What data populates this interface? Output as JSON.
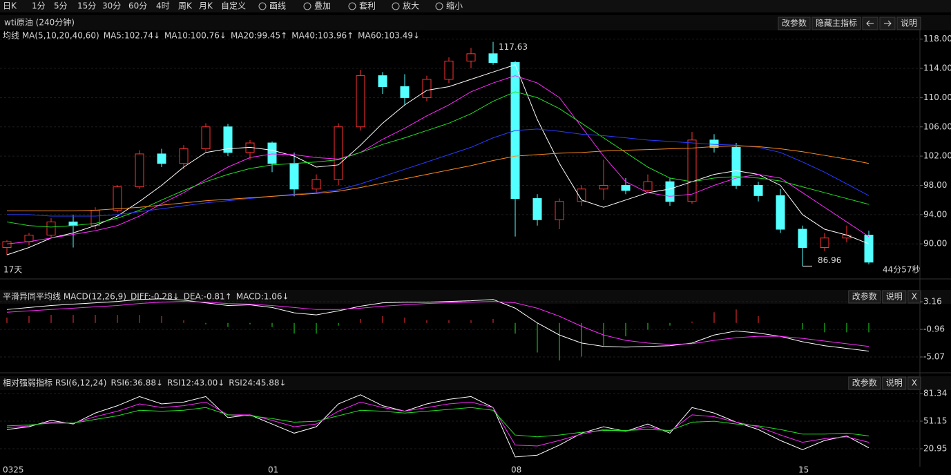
{
  "toolbar": [
    "日K",
    "1分",
    "5分",
    "15分",
    "30分",
    "60分",
    "4时",
    "周K",
    "月K",
    "自定义",
    "画线",
    "叠加",
    "套利",
    "放大",
    "缩小"
  ],
  "header": {
    "title": "wti原油 (240分钟)",
    "buttons": [
      "改参数",
      "隐藏主指标",
      "说明"
    ]
  },
  "chart_data": [
    {
      "type": "candlestick",
      "title": "均线 MA(5,10,20,40,60)",
      "up_color": "#ff3232",
      "down_color": "#54ffff",
      "open": [
        89.5,
        90.3,
        91.2,
        93.0,
        92.5,
        94.6,
        97.8,
        102.3,
        101.0,
        103.0,
        106.0,
        102.5,
        103.8,
        101.0,
        97.5,
        98.8,
        106.0,
        113.0,
        111.5,
        110.0,
        112.5,
        115.0,
        116.0,
        114.8,
        96.2,
        93.3,
        95.8,
        97.5,
        98.0,
        97.3,
        98.5,
        95.8,
        104.2,
        103.2,
        98.0,
        96.6,
        92.0,
        89.5,
        90.8,
        91.2
      ],
      "high": [
        90.5,
        91.5,
        93.5,
        94.0,
        95.0,
        98.0,
        102.8,
        103.0,
        103.5,
        106.5,
        106.4,
        104.2,
        104.0,
        102.5,
        99.5,
        106.5,
        113.8,
        113.5,
        113.2,
        113.0,
        115.5,
        116.8,
        117.63,
        115.0,
        96.8,
        96.2,
        98.0,
        101.5,
        99.0,
        99.5,
        99.0,
        105.3,
        105.0,
        103.8,
        98.5,
        97.5,
        92.5,
        91.5,
        92.5,
        91.8
      ],
      "low": [
        88.5,
        89.8,
        90.8,
        89.5,
        92.0,
        94.3,
        97.5,
        100.5,
        100.2,
        102.6,
        102.0,
        101.5,
        99.8,
        96.5,
        97.0,
        98.0,
        105.5,
        110.5,
        109.0,
        109.5,
        112.0,
        114.0,
        114.5,
        91.0,
        92.5,
        92.0,
        95.2,
        96.0,
        96.8,
        97.0,
        95.2,
        95.5,
        102.5,
        97.5,
        95.8,
        91.5,
        86.96,
        89.0,
        90.2,
        87.2
      ],
      "close": [
        90.3,
        91.2,
        93.0,
        92.5,
        94.6,
        97.8,
        102.3,
        101.0,
        103.0,
        106.0,
        102.5,
        103.8,
        101.0,
        97.5,
        98.8,
        106.0,
        113.0,
        111.5,
        110.0,
        112.5,
        115.0,
        116.0,
        114.8,
        96.2,
        93.3,
        95.8,
        97.5,
        98.0,
        97.3,
        98.5,
        95.8,
        104.2,
        103.2,
        98.0,
        96.6,
        92.0,
        89.5,
        90.8,
        91.2,
        87.5
      ],
      "series": [
        {
          "name": "MA5:102.74↓",
          "color": "#ffffff",
          "values": [
            88.5,
            89.5,
            90.8,
            91.5,
            92.5,
            93.8,
            95.8,
            98,
            100.5,
            102.5,
            103,
            103.2,
            102.8,
            102,
            100.5,
            100.8,
            103.5,
            106.5,
            109,
            111,
            111.5,
            112.5,
            113.5,
            114.5,
            107,
            101,
            96,
            95,
            96,
            97,
            97.5,
            98.5,
            99.5,
            100,
            99.5,
            98,
            94,
            92,
            91.2,
            90
          ]
        },
        {
          "name": "MA10:100.76↓",
          "color": "#ff2bff",
          "values": [
            90,
            90.3,
            90.8,
            91.3,
            91.8,
            92.5,
            93.8,
            95.5,
            97,
            98.8,
            100.5,
            101.8,
            102.3,
            102.2,
            101.8,
            101.6,
            102.5,
            104.3,
            105.8,
            107.5,
            109,
            110.8,
            112,
            113,
            112,
            110,
            106,
            102,
            98.5,
            97,
            96.5,
            96.8,
            98,
            99,
            99.5,
            99,
            97,
            95,
            93,
            91
          ]
        },
        {
          "name": "MA20:99.45↑",
          "color": "#22e022",
          "values": [
            93,
            92.5,
            92.3,
            92.5,
            92.8,
            93.5,
            94.6,
            96,
            97.3,
            98.5,
            99.5,
            100.3,
            100.8,
            101,
            101.2,
            101.5,
            102.5,
            103.6,
            104.5,
            105.5,
            106.5,
            107.8,
            109.5,
            110.8,
            110,
            108.5,
            106.5,
            104.5,
            102.5,
            100.5,
            99,
            98.5,
            99,
            99.2,
            99,
            98.6,
            97.8,
            97,
            96.2,
            95.4
          ]
        },
        {
          "name": "MA40:103.96↑",
          "color": "#2a3cff",
          "values": [
            94,
            94,
            93.8,
            93.8,
            93.8,
            94,
            94.4,
            94.8,
            95.2,
            95.6,
            95.9,
            96.2,
            96.5,
            96.8,
            97,
            97.4,
            98.2,
            99.2,
            100.2,
            101.2,
            102.2,
            103.2,
            104.5,
            105.5,
            105.7,
            105.4,
            105,
            104.8,
            104.5,
            104.2,
            104,
            103.8,
            103.6,
            103.5,
            103.2,
            102.5,
            101.2,
            99.8,
            98.2,
            96.6
          ]
        },
        {
          "name": "MA60:103.49↓",
          "color": "#ff8a1e",
          "values": [
            94.5,
            94.5,
            94.5,
            94.5,
            94.6,
            94.8,
            95,
            95.3,
            95.6,
            95.9,
            96.1,
            96.3,
            96.5,
            96.7,
            96.9,
            97.2,
            97.7,
            98.3,
            98.9,
            99.5,
            100.1,
            100.7,
            101.4,
            102,
            102.2,
            102.4,
            102.5,
            102.7,
            102.8,
            102.9,
            103,
            103.1,
            103.3,
            103.4,
            103.3,
            103,
            102.6,
            102.1,
            101.6,
            101
          ]
        }
      ],
      "ylim": [
        85.3,
        119.1
      ],
      "yticks": [
        {
          "value": 90,
          "label": "90.00"
        },
        {
          "value": 94,
          "label": "94.00"
        },
        {
          "value": 98,
          "label": "98.00"
        },
        {
          "value": 102,
          "label": "102.00"
        },
        {
          "value": 106,
          "label": "106.00"
        },
        {
          "value": 110,
          "label": "110.00"
        },
        {
          "value": 114,
          "label": "114.00"
        },
        {
          "value": 118,
          "label": "118.00"
        }
      ],
      "high_label": 117.63,
      "low_label": 86.96,
      "left_note": "17天",
      "right_note": "44分57秒",
      "buttons": [
        "改参数",
        "隐藏主指标",
        "说明"
      ]
    },
    {
      "type": "macd",
      "title": "平滑异同平均线 MACD(12,26,9)",
      "buttons": [
        "改参数",
        "说明",
        "X"
      ],
      "series": [
        {
          "name": "DIFF:-0.28↓",
          "color": "#ffffff",
          "values": [
            2.0,
            2.3,
            2.6,
            2.8,
            3.0,
            3.2,
            3.5,
            3.6,
            3.4,
            3.0,
            2.6,
            2.7,
            2.3,
            1.5,
            1.2,
            1.8,
            2.5,
            3.0,
            3.1,
            3.1,
            3.2,
            3.3,
            3.5,
            2.2,
            0.0,
            -1.8,
            -3.0,
            -3.5,
            -3.6,
            -3.5,
            -3.4,
            -3.0,
            -1.8,
            -1.2,
            -1.5,
            -2.0,
            -2.8,
            -3.4,
            -3.8,
            -4.2
          ]
        },
        {
          "name": "DEA:-0.81↑",
          "color": "#ff2bff",
          "values": [
            1.6,
            1.8,
            2.0,
            2.2,
            2.4,
            2.6,
            2.9,
            3.1,
            3.2,
            3.1,
            2.9,
            2.8,
            2.6,
            2.3,
            2.0,
            2.0,
            2.2,
            2.5,
            2.7,
            2.9,
            3.0,
            3.1,
            3.2,
            3.0,
            2.2,
            1.0,
            -0.5,
            -1.8,
            -2.6,
            -3.0,
            -3.2,
            -3.1,
            -2.6,
            -2.2,
            -2.0,
            -2.0,
            -2.3,
            -2.7,
            -3.1,
            -3.5
          ]
        },
        {
          "name": "MACD:1.06↓",
          "color": "#ff3232",
          "down_color": "#22e022",
          "values": [
            0.8,
            1.0,
            1.2,
            1.2,
            1.2,
            1.2,
            1.2,
            1.0,
            0.4,
            -0.2,
            -0.6,
            -0.2,
            -0.6,
            -1.6,
            -1.6,
            -0.4,
            0.6,
            1.0,
            0.8,
            0.4,
            0.4,
            0.4,
            0.6,
            -1.6,
            -4.4,
            -5.6,
            -5.0,
            -3.4,
            -2.0,
            -1.0,
            -0.4,
            0.2,
            1.6,
            2.0,
            1.0,
            0,
            -1.0,
            -1.4,
            -1.4,
            -1.4
          ]
        }
      ],
      "ylim": [
        -6.2,
        4.09
      ],
      "yticks": [
        3.16,
        -0.96,
        -5.07
      ]
    },
    {
      "type": "line",
      "title": "相对强弱指标 RSI(6,12,24)",
      "buttons": [
        "改参数",
        "说明",
        "X"
      ],
      "categories": [
        "0325",
        null,
        null,
        null,
        null,
        null,
        null,
        null,
        null,
        null,
        null,
        null,
        "01",
        null,
        null,
        null,
        null,
        null,
        null,
        null,
        null,
        null,
        null,
        "08",
        null,
        null,
        null,
        null,
        null,
        null,
        null,
        null,
        null,
        null,
        null,
        null,
        "15",
        null,
        null,
        null
      ],
      "series": [
        {
          "name": "RSI6:36.88↓",
          "color": "#ffffff",
          "values": [
            42,
            45,
            52,
            48,
            60,
            68,
            78,
            70,
            72,
            78,
            55,
            58,
            48,
            38,
            45,
            70,
            80,
            68,
            62,
            70,
            75,
            78,
            66,
            12,
            14,
            25,
            38,
            45,
            40,
            48,
            38,
            66,
            60,
            50,
            42,
            30,
            20,
            30,
            35,
            22
          ]
        },
        {
          "name": "RSI12:43.00↓",
          "color": "#ff2bff",
          "values": [
            44,
            46,
            50,
            49,
            56,
            62,
            70,
            66,
            68,
            72,
            58,
            58,
            52,
            45,
            48,
            62,
            72,
            66,
            62,
            66,
            70,
            72,
            66,
            25,
            24,
            30,
            37,
            42,
            40,
            45,
            40,
            58,
            56,
            50,
            45,
            36,
            28,
            32,
            34,
            28
          ]
        },
        {
          "name": "RSI24:45.88↓",
          "color": "#22e022",
          "values": [
            46,
            47,
            49,
            49,
            53,
            57,
            63,
            62,
            63,
            66,
            58,
            57,
            54,
            50,
            51,
            57,
            63,
            62,
            60,
            62,
            64,
            66,
            63,
            36,
            34,
            36,
            39,
            41,
            41,
            42,
            41,
            50,
            51,
            48,
            46,
            42,
            37,
            37,
            38,
            35
          ]
        }
      ],
      "ylim": [
        2.1,
        86.6
      ],
      "yticks": [
        81.34,
        51.15,
        20.95
      ]
    }
  ]
}
